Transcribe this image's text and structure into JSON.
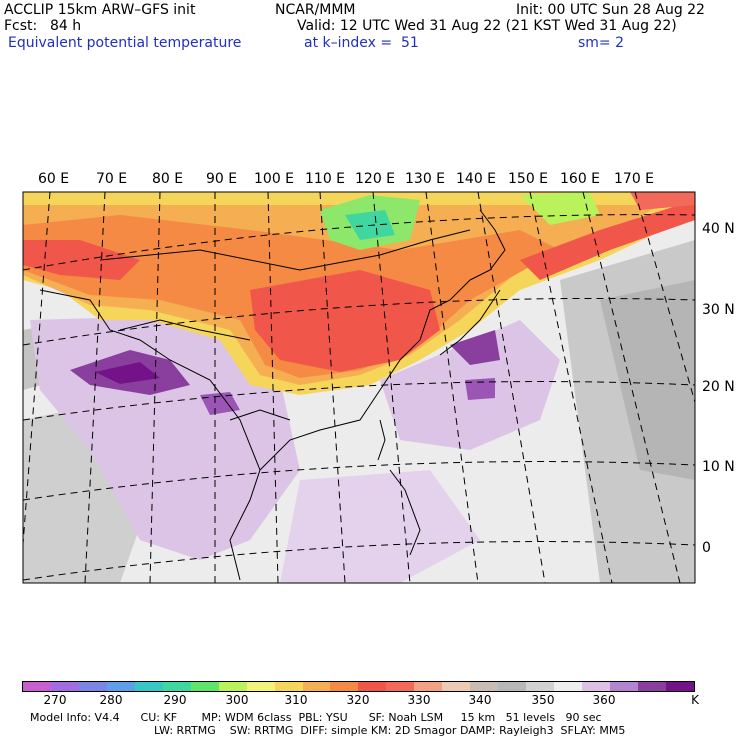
{
  "header": {
    "model": "ACCLIP 15km ARW–GFS init",
    "org": "NCAR/MMM",
    "init": "Init: 00 UTC Sun 28 Aug 22",
    "fcst_label": "Fcst:",
    "fcst_value": "84 h",
    "valid": "Valid: 12 UTC Wed 31 Aug 22 (21 KST Wed 31 Aug 22)",
    "field": "Equivalent potential temperature",
    "level": "at k–index =  51",
    "smooth": "sm= 2"
  },
  "map": {
    "lon_labels": [
      "60 E",
      "70 E",
      "80 E",
      "90 E",
      "100 E",
      "110 E",
      "120 E",
      "130 E",
      "140 E",
      "150 E",
      "160 E",
      "170 E"
    ],
    "lat_labels": [
      "40 N",
      "30 N",
      "20 N",
      "10 N",
      "0"
    ]
  },
  "colorbar": {
    "labels": [
      "270",
      "280",
      "290",
      "300",
      "310",
      "320",
      "330",
      "340",
      "350",
      "360",
      "K"
    ],
    "colors": [
      "#c85ed0",
      "#a26de0",
      "#7b85e6",
      "#5f9ee8",
      "#39c6c6",
      "#3fd6a0",
      "#5fe66a",
      "#b9f25a",
      "#f3f27a",
      "#f6d65a",
      "#f5ae52",
      "#f58a44",
      "#f1564a",
      "#f36a5a",
      "#f4a086",
      "#eccbb5",
      "#c8bcb3",
      "#b8b8b8",
      "#d2d2d2",
      "#eeeeee",
      "#dcc0e6",
      "#b484d0",
      "#8a3f9e",
      "#74128a"
    ]
  },
  "footer": {
    "line1": "Model Info: V4.4      CU: KF       MP: WDM 6class  PBL: YSU      SF: Noah LSM     15 km   51 levels   90 sec",
    "line2": "LW: RRTMG    SW: RRTMG  DIFF: simple KM: 2D Smagor DAMP: Rayleigh3  SFLAY: MM5"
  }
}
